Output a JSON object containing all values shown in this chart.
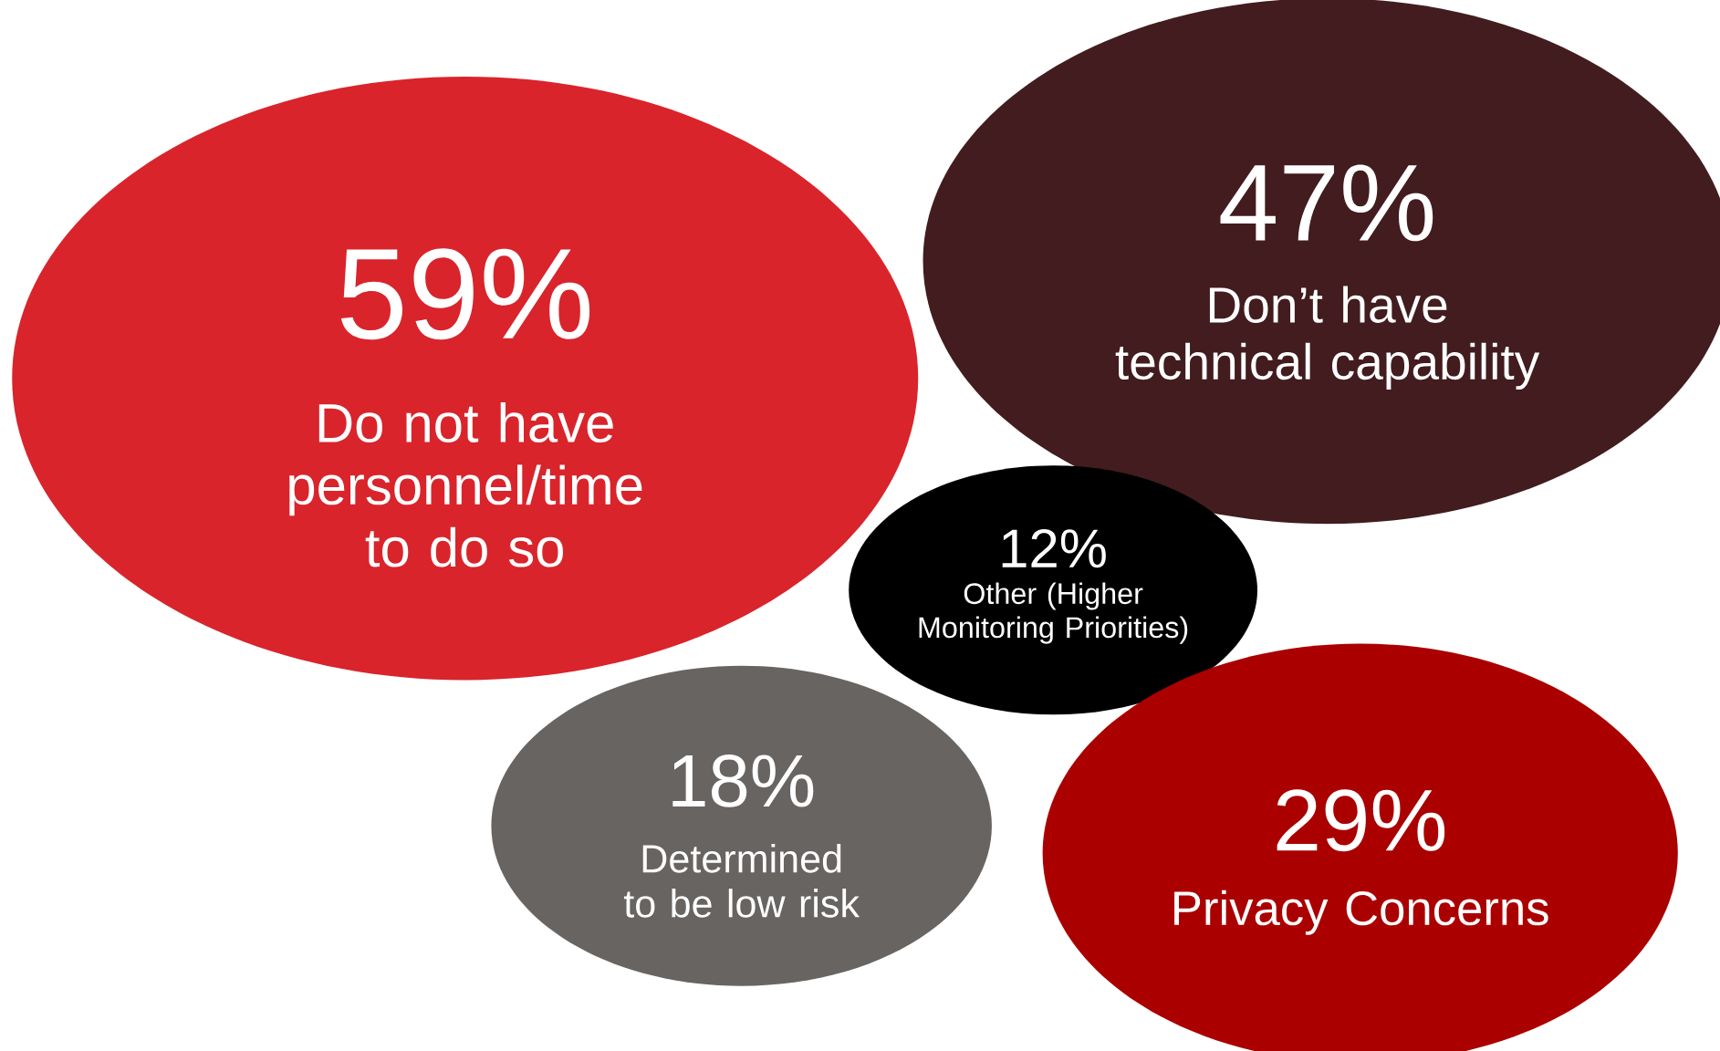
{
  "chart_data": {
    "type": "other",
    "categories": [
      "Do not have personnel/time to do so",
      "Don’t have technical capability",
      "Other (Higher Monitoring Priorities)",
      "Determined to be low risk",
      "Privacy Concerns"
    ],
    "values": [
      59,
      47,
      12,
      18,
      29
    ],
    "value_labels": [
      "59%",
      "47%",
      "12%",
      "18%",
      "29%"
    ],
    "colors": [
      "#d9242b",
      "#421c1e",
      "#000000",
      "#686462",
      "#aa0000"
    ]
  }
}
